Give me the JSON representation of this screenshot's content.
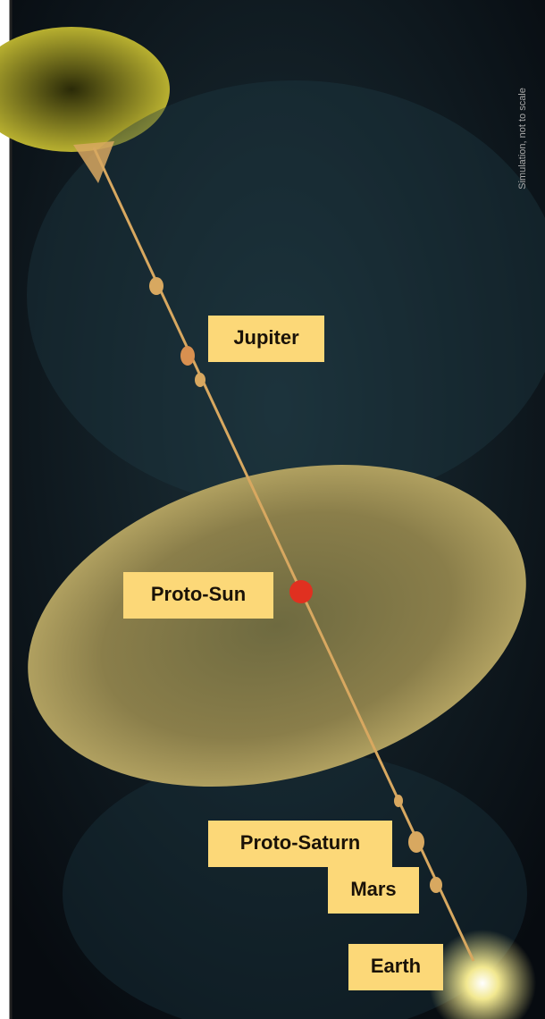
{
  "note_text": "Simulation, not to scale",
  "labels": [
    {
      "text": "Jupiter"
    },
    {
      "text": "Proto-Sun"
    },
    {
      "text": "Proto-Saturn"
    },
    {
      "text": "Mars"
    },
    {
      "text": "Earth"
    }
  ]
}
